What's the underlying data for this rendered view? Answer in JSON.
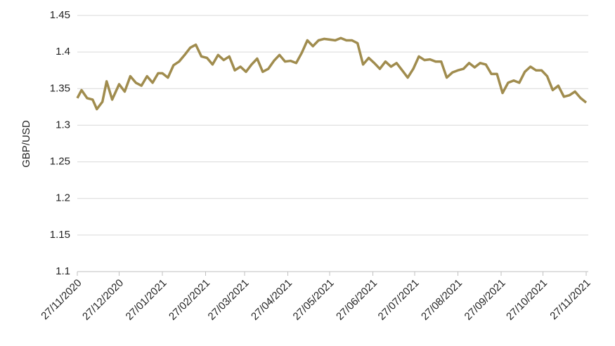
{
  "chart_data": {
    "type": "line",
    "ylabel": "GBP/USD",
    "x": [
      "27/11/2020",
      "30/11/2020",
      "04/12/2020",
      "08/12/2020",
      "11/12/2020",
      "15/12/2020",
      "18/12/2020",
      "22/12/2020",
      "27/12/2020",
      "31/12/2020",
      "04/01/2021",
      "08/01/2021",
      "12/01/2021",
      "16/01/2021",
      "20/01/2021",
      "24/01/2021",
      "27/01/2021",
      "31/01/2021",
      "04/02/2021",
      "08/02/2021",
      "12/02/2021",
      "16/02/2021",
      "20/02/2021",
      "24/02/2021",
      "28/02/2021",
      "04/03/2021",
      "08/03/2021",
      "12/03/2021",
      "16/03/2021",
      "20/03/2021",
      "24/03/2021",
      "28/03/2021",
      "01/04/2021",
      "05/04/2021",
      "09/04/2021",
      "13/04/2021",
      "17/04/2021",
      "21/04/2021",
      "25/04/2021",
      "29/04/2021",
      "03/05/2021",
      "07/05/2021",
      "11/05/2021",
      "15/05/2021",
      "19/05/2021",
      "23/05/2021",
      "27/05/2021",
      "31/05/2021",
      "04/06/2021",
      "08/06/2021",
      "12/06/2021",
      "16/06/2021",
      "20/06/2021",
      "24/06/2021",
      "28/06/2021",
      "02/07/2021",
      "06/07/2021",
      "10/07/2021",
      "14/07/2021",
      "18/07/2021",
      "22/07/2021",
      "26/07/2021",
      "30/07/2021",
      "03/08/2021",
      "07/08/2021",
      "11/08/2021",
      "15/08/2021",
      "19/08/2021",
      "23/08/2021",
      "27/08/2021",
      "31/08/2021",
      "04/09/2021",
      "08/09/2021",
      "12/09/2021",
      "16/09/2021",
      "20/09/2021",
      "24/09/2021",
      "28/09/2021",
      "02/10/2021",
      "06/10/2021",
      "10/10/2021",
      "14/10/2021",
      "18/10/2021",
      "22/10/2021",
      "26/10/2021",
      "30/10/2021",
      "03/11/2021",
      "07/11/2021",
      "11/11/2021",
      "15/11/2021",
      "19/11/2021",
      "23/11/2021",
      "27/11/2021"
    ],
    "series": [
      {
        "name": "GBP/USD",
        "color": "#a08c4e",
        "values": [
          1.337,
          1.348,
          1.337,
          1.335,
          1.322,
          1.332,
          1.36,
          1.335,
          1.356,
          1.346,
          1.367,
          1.358,
          1.354,
          1.367,
          1.358,
          1.371,
          1.371,
          1.365,
          1.382,
          1.387,
          1.396,
          1.406,
          1.41,
          1.394,
          1.392,
          1.383,
          1.396,
          1.389,
          1.394,
          1.375,
          1.38,
          1.373,
          1.383,
          1.391,
          1.373,
          1.377,
          1.388,
          1.396,
          1.387,
          1.388,
          1.385,
          1.399,
          1.416,
          1.408,
          1.416,
          1.418,
          1.417,
          1.416,
          1.419,
          1.416,
          1.416,
          1.412,
          1.383,
          1.392,
          1.385,
          1.377,
          1.387,
          1.38,
          1.385,
          1.375,
          1.365,
          1.377,
          1.394,
          1.389,
          1.39,
          1.387,
          1.387,
          1.365,
          1.372,
          1.375,
          1.377,
          1.385,
          1.379,
          1.385,
          1.383,
          1.37,
          1.37,
          1.344,
          1.358,
          1.361,
          1.358,
          1.373,
          1.38,
          1.375,
          1.375,
          1.367,
          1.348,
          1.354,
          1.339,
          1.341,
          1.346,
          1.337,
          1.331
        ]
      }
    ],
    "xlim": [
      "27/11/2020",
      "27/11/2021"
    ],
    "xticks": [
      "27/11/2020",
      "27/12/2020",
      "27/01/2021",
      "27/02/2021",
      "27/03/2021",
      "27/04/2021",
      "27/05/2021",
      "27/06/2021",
      "27/07/2021",
      "27/08/2021",
      "27/09/2021",
      "27/10/2021",
      "27/11/2021"
    ],
    "ylim": [
      1.1,
      1.45
    ],
    "yticks": [
      1.1,
      1.15,
      1.2,
      1.25,
      1.3,
      1.35,
      1.4,
      1.45
    ],
    "grid": true
  }
}
